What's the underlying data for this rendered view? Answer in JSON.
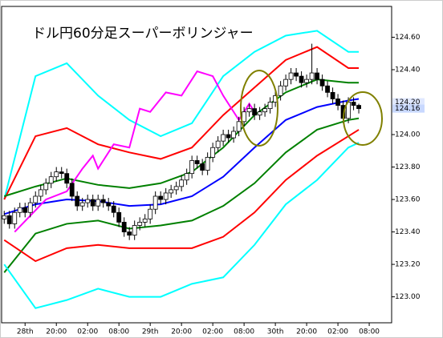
{
  "chart_data": {
    "type": "candlestick",
    "title": "ドル円60分足スーパーボリンジャー",
    "x": [
      0,
      1,
      2,
      3,
      4,
      5,
      6,
      7,
      8,
      9,
      10,
      11,
      12,
      13,
      14,
      15,
      16,
      17,
      18,
      19,
      20,
      21,
      22,
      23,
      24,
      25,
      26,
      27,
      28,
      29,
      30,
      31,
      32,
      33,
      34,
      35,
      36,
      37,
      38,
      39,
      40,
      41,
      42,
      43,
      44,
      45,
      46,
      47,
      48,
      49,
      50,
      51,
      52,
      53,
      54,
      55,
      56,
      57,
      58,
      59,
      60,
      61,
      62,
      63,
      64,
      65,
      66,
      67,
      68
    ],
    "open": [
      123.48,
      123.5,
      123.45,
      123.52,
      123.55,
      123.52,
      123.58,
      123.62,
      123.66,
      123.7,
      123.74,
      123.77,
      123.76,
      123.7,
      123.62,
      123.56,
      123.58,
      123.6,
      123.56,
      123.6,
      123.58,
      123.56,
      123.52,
      123.46,
      123.4,
      123.38,
      123.44,
      123.46,
      123.48,
      123.54,
      123.62,
      123.6,
      123.64,
      123.66,
      123.68,
      123.72,
      123.76,
      123.84,
      123.82,
      123.78,
      123.86,
      123.92,
      123.96,
      124.0,
      123.98,
      124.02,
      124.08,
      124.14,
      124.16,
      124.12,
      124.14,
      124.16,
      124.2,
      124.24,
      124.3,
      124.34,
      124.38,
      124.36,
      124.32,
      124.34,
      124.38,
      124.34,
      124.3,
      124.26,
      124.22,
      124.18,
      124.1,
      124.2,
      124.18
    ],
    "high": [
      123.53,
      123.53,
      123.55,
      123.58,
      123.58,
      123.61,
      123.65,
      123.69,
      123.73,
      123.77,
      123.8,
      123.8,
      123.79,
      123.73,
      123.65,
      123.61,
      123.63,
      123.63,
      123.63,
      123.63,
      123.61,
      123.59,
      123.55,
      123.49,
      123.43,
      123.47,
      123.49,
      123.51,
      123.57,
      123.65,
      123.65,
      123.67,
      123.69,
      123.71,
      123.75,
      123.79,
      123.87,
      123.87,
      123.85,
      123.89,
      123.95,
      123.99,
      124.03,
      124.03,
      124.05,
      124.11,
      124.17,
      124.19,
      124.19,
      124.17,
      124.19,
      124.23,
      124.27,
      124.33,
      124.37,
      124.41,
      124.41,
      124.39,
      124.37,
      124.56,
      124.41,
      124.37,
      124.33,
      124.29,
      124.25,
      124.21,
      124.23,
      124.23,
      124.19
    ],
    "low": [
      123.45,
      123.42,
      123.42,
      123.49,
      123.49,
      123.49,
      123.55,
      123.59,
      123.63,
      123.67,
      123.71,
      123.73,
      123.67,
      123.59,
      123.53,
      123.53,
      123.55,
      123.53,
      123.53,
      123.55,
      123.53,
      123.49,
      123.43,
      123.37,
      123.35,
      123.35,
      123.41,
      123.43,
      123.45,
      123.51,
      123.57,
      123.57,
      123.61,
      123.63,
      123.65,
      123.69,
      123.73,
      123.79,
      123.75,
      123.75,
      123.83,
      123.89,
      123.93,
      123.95,
      123.95,
      123.99,
      124.05,
      124.11,
      124.09,
      124.09,
      124.11,
      124.13,
      124.17,
      124.21,
      124.27,
      124.31,
      124.33,
      124.29,
      124.29,
      124.31,
      124.31,
      124.27,
      124.23,
      124.19,
      124.15,
      124.07,
      124.07,
      124.15,
      124.13
    ],
    "close": [
      123.5,
      123.45,
      123.52,
      123.55,
      123.52,
      123.58,
      123.62,
      123.66,
      123.7,
      123.74,
      123.77,
      123.76,
      123.7,
      123.62,
      123.56,
      123.58,
      123.6,
      123.56,
      123.6,
      123.58,
      123.56,
      123.52,
      123.46,
      123.4,
      123.38,
      123.44,
      123.46,
      123.48,
      123.54,
      123.62,
      123.6,
      123.64,
      123.66,
      123.68,
      123.72,
      123.76,
      123.84,
      123.82,
      123.78,
      123.86,
      123.92,
      123.96,
      124.0,
      123.98,
      124.02,
      124.08,
      124.14,
      124.16,
      124.12,
      124.14,
      124.16,
      124.2,
      124.24,
      124.3,
      124.34,
      124.38,
      124.36,
      124.32,
      124.34,
      124.38,
      124.34,
      124.3,
      124.26,
      124.22,
      124.18,
      124.1,
      124.2,
      124.18,
      124.16
    ],
    "bands": [
      {
        "color": "#00ffff",
        "x": [
          0,
          6,
          12,
          18,
          24,
          30,
          36,
          42,
          48,
          54,
          60,
          66,
          68
        ],
        "values": [
          123.6,
          124.36,
          124.44,
          124.24,
          124.09,
          123.99,
          124.07,
          124.36,
          124.51,
          124.61,
          124.64,
          124.51,
          124.51
        ]
      },
      {
        "color": "#ff0000",
        "x": [
          0,
          6,
          12,
          18,
          24,
          30,
          36,
          42,
          48,
          54,
          60,
          66,
          68
        ],
        "values": [
          123.6,
          123.99,
          124.04,
          123.94,
          123.89,
          123.85,
          123.92,
          124.12,
          124.29,
          124.46,
          124.54,
          124.41,
          124.41
        ]
      },
      {
        "color": "#008000",
        "x": [
          0,
          6,
          12,
          18,
          24,
          30,
          36,
          42,
          48,
          54,
          60,
          66,
          68
        ],
        "values": [
          123.62,
          123.68,
          123.73,
          123.69,
          123.67,
          123.7,
          123.77,
          123.92,
          124.12,
          124.26,
          124.34,
          124.32,
          124.32
        ]
      },
      {
        "color": "#0000ff",
        "x": [
          0,
          6,
          12,
          18,
          24,
          30,
          36,
          42,
          48,
          54,
          60,
          66,
          68
        ],
        "values": [
          123.51,
          123.57,
          123.6,
          123.59,
          123.56,
          123.57,
          123.62,
          123.74,
          123.92,
          124.09,
          124.17,
          124.21,
          124.22
        ]
      },
      {
        "color": "#008000",
        "x": [
          0,
          6,
          12,
          18,
          24,
          30,
          36,
          42,
          48,
          54,
          60,
          66,
          68
        ],
        "values": [
          123.15,
          123.39,
          123.45,
          123.47,
          123.42,
          123.44,
          123.47,
          123.56,
          123.7,
          123.89,
          124.03,
          124.09,
          124.1
        ]
      },
      {
        "color": "#ff0000",
        "x": [
          0,
          6,
          12,
          18,
          24,
          30,
          36,
          42,
          48,
          54,
          60,
          66,
          68
        ],
        "values": [
          123.35,
          123.22,
          123.3,
          123.32,
          123.3,
          123.3,
          123.3,
          123.37,
          123.52,
          123.72,
          123.87,
          123.99,
          124.03
        ]
      },
      {
        "color": "#00ffff",
        "x": [
          0,
          6,
          12,
          18,
          24,
          30,
          36,
          42,
          48,
          54,
          60,
          66,
          68
        ],
        "values": [
          123.2,
          122.93,
          122.98,
          123.05,
          123.0,
          123.0,
          123.08,
          123.12,
          123.32,
          123.57,
          123.72,
          123.92,
          123.95
        ]
      },
      {
        "color": "#ff00ff",
        "x": [
          2,
          5,
          8,
          12,
          15,
          17,
          18,
          21,
          24,
          26,
          28,
          31,
          34,
          37,
          40,
          42,
          45,
          47,
          48
        ],
        "values": [
          123.4,
          123.5,
          123.6,
          123.65,
          123.79,
          123.87,
          123.79,
          123.94,
          123.92,
          124.16,
          124.14,
          124.26,
          124.24,
          124.39,
          124.36,
          124.24,
          124.09,
          124.19,
          124.14
        ]
      }
    ],
    "xlim": [
      -0.5,
      74.3
    ],
    "xticks": [
      {
        "value": 4,
        "label": "28th"
      },
      {
        "value": 10,
        "label": "20:00"
      },
      {
        "value": 16,
        "label": "02:00"
      },
      {
        "value": 22,
        "label": "08:00"
      },
      {
        "value": 28,
        "label": "29th"
      },
      {
        "value": 34,
        "label": "20:00"
      },
      {
        "value": 40,
        "label": "02:00"
      },
      {
        "value": 46,
        "label": "08:00"
      },
      {
        "value": 52,
        "label": "30th"
      },
      {
        "value": 58,
        "label": "20:00"
      },
      {
        "value": 64,
        "label": "02:00"
      },
      {
        "value": 70,
        "label": "08:00"
      }
    ],
    "ylim": [
      122.84,
      124.79
    ],
    "yticks": [
      {
        "value": 123,
        "label": "123.00"
      },
      {
        "value": 123.2,
        "label": "123.20"
      },
      {
        "value": 123.4,
        "label": "123.40"
      },
      {
        "value": 123.6,
        "label": "123.60"
      },
      {
        "value": 123.8,
        "label": "123.80"
      },
      {
        "value": 124,
        "label": "124.00"
      },
      {
        "value": 124.4,
        "label": "124.40"
      },
      {
        "value": 124.6,
        "label": "124.60"
      }
    ],
    "price_labels": [
      {
        "value": 124.2,
        "label": "124.20"
      },
      {
        "value": 124.16,
        "label": "124.16"
      }
    ]
  }
}
